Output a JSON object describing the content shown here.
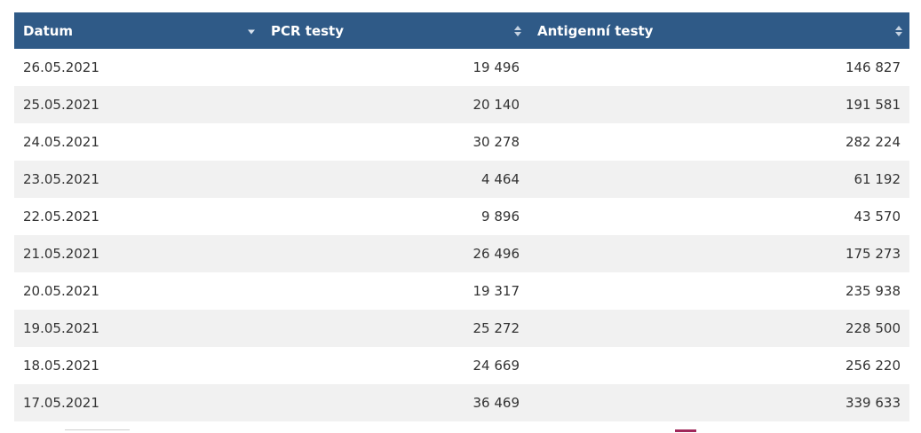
{
  "table": {
    "headers": {
      "date": "Datum",
      "pcr": "PCR testy",
      "antigen": "Antigenní testy"
    },
    "rows": [
      {
        "date": "26.05.2021",
        "pcr": "19 496",
        "antigen": "146 827"
      },
      {
        "date": "25.05.2021",
        "pcr": "20 140",
        "antigen": "191 581"
      },
      {
        "date": "24.05.2021",
        "pcr": "30 278",
        "antigen": "282 224"
      },
      {
        "date": "23.05.2021",
        "pcr": "4 464",
        "antigen": "61 192"
      },
      {
        "date": "22.05.2021",
        "pcr": "9 896",
        "antigen": "43 570"
      },
      {
        "date": "21.05.2021",
        "pcr": "26 496",
        "antigen": "175 273"
      },
      {
        "date": "20.05.2021",
        "pcr": "19 317",
        "antigen": "235 938"
      },
      {
        "date": "19.05.2021",
        "pcr": "25 272",
        "antigen": "228 500"
      },
      {
        "date": "18.05.2021",
        "pcr": "24 669",
        "antigen": "256 220"
      },
      {
        "date": "17.05.2021",
        "pcr": "36 469",
        "antigen": "339 633"
      }
    ],
    "sort": {
      "column": "date",
      "direction": "descending"
    }
  },
  "colors": {
    "header_bg": "#2f5a87",
    "row_alt_bg": "#f1f1f1",
    "accent": "#a0285a"
  },
  "icons": {
    "date_sort": "sort-descending-icon",
    "pcr_sort": "sort-both-icon",
    "antigen_sort": "sort-both-icon"
  }
}
